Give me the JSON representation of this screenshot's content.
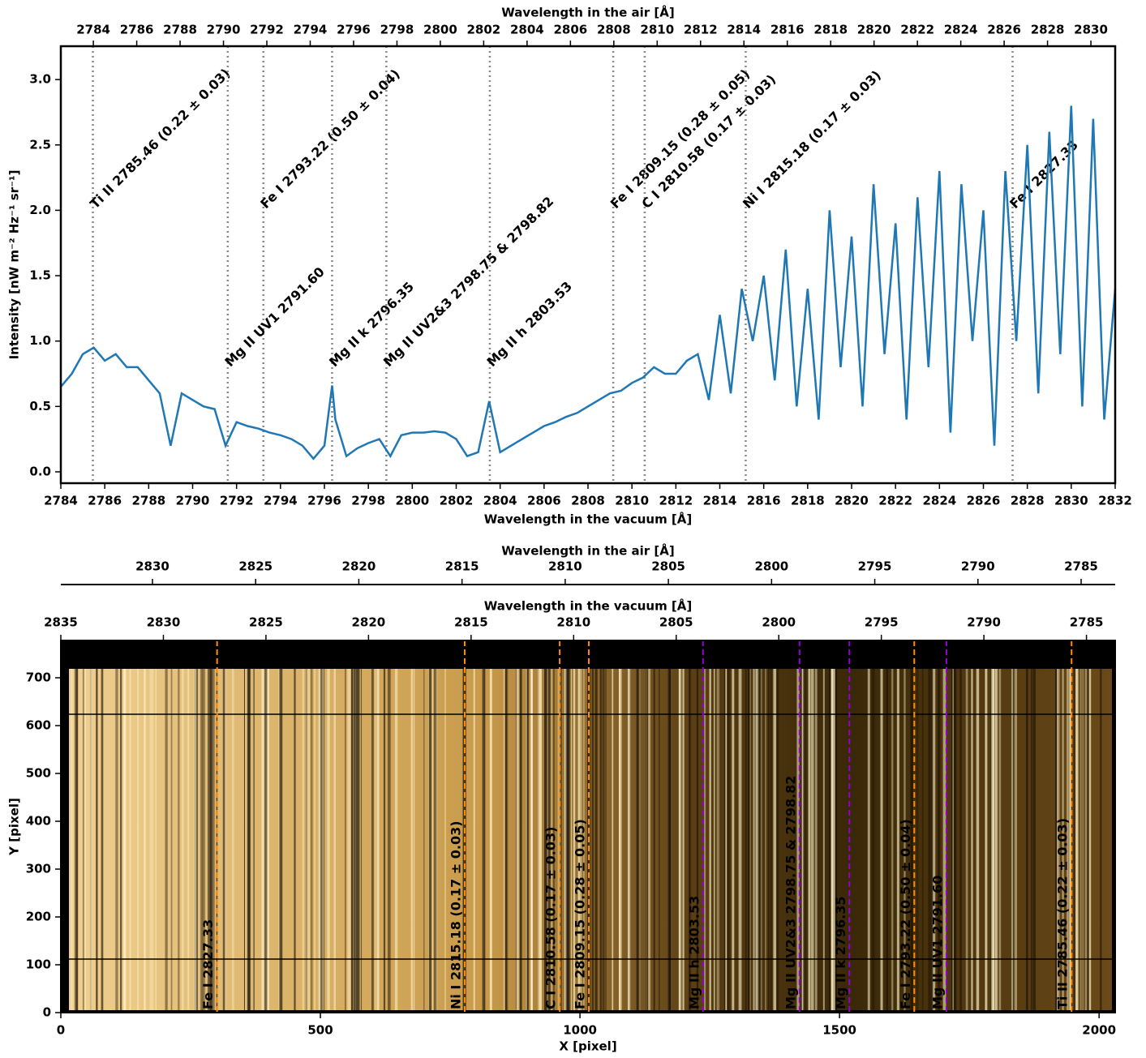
{
  "chart_data": [
    {
      "type": "line",
      "xlabel": "Wavelength in the vacuum [Å]",
      "x2label": "Wavelength in the air [Å]",
      "ylabel": "Intensity [nW m⁻² Hz⁻¹ sr⁻¹]",
      "color": "#1f77b4",
      "xlim": [
        2784,
        2832
      ],
      "xticks": [
        2784,
        2786,
        2788,
        2790,
        2792,
        2794,
        2796,
        2798,
        2800,
        2802,
        2804,
        2806,
        2808,
        2810,
        2812,
        2814,
        2816,
        2818,
        2820,
        2822,
        2824,
        2826,
        2828,
        2830,
        2832
      ],
      "x2lim": [
        2782.5,
        2831.12
      ],
      "x2ticks": [
        2784,
        2786,
        2788,
        2790,
        2792,
        2794,
        2796,
        2798,
        2800,
        2802,
        2804,
        2806,
        2808,
        2810,
        2812,
        2814,
        2816,
        2818,
        2820,
        2822,
        2824,
        2826,
        2828,
        2830
      ],
      "ylim": [
        -0.087,
        3.255
      ],
      "yticks": [
        {
          "value": 0,
          "label": "0.0"
        },
        {
          "value": 0.5,
          "label": "0.5"
        },
        {
          "value": 1,
          "label": "1.0"
        },
        {
          "value": 1.5,
          "label": "1.5"
        },
        {
          "value": 2,
          "label": "2.0"
        },
        {
          "value": 2.5,
          "label": "2.5"
        },
        {
          "value": 3,
          "label": "3.0"
        }
      ],
      "x": [
        2784,
        2784.5,
        2785,
        2785.5,
        2786,
        2786.5,
        2787,
        2787.5,
        2788,
        2788.5,
        2789,
        2789.5,
        2790,
        2790.5,
        2791,
        2791.5,
        2792,
        2792.5,
        2793,
        2793.5,
        2794,
        2794.5,
        2795,
        2795.5,
        2796,
        2796.35,
        2796.5,
        2797,
        2797.5,
        2798,
        2798.5,
        2799,
        2799.5,
        2800,
        2800.5,
        2801,
        2801.5,
        2802,
        2802.5,
        2803,
        2803.5,
        2804,
        2804.5,
        2805,
        2805.5,
        2806,
        2806.5,
        2807,
        2807.5,
        2808,
        2808.5,
        2809,
        2809.5,
        2810,
        2810.5,
        2811,
        2811.5,
        2812,
        2812.5,
        2813,
        2813.5,
        2814,
        2814.5,
        2815,
        2815.5,
        2816,
        2816.5,
        2817,
        2817.5,
        2818,
        2818.5,
        2819,
        2819.5,
        2820,
        2820.5,
        2821,
        2821.5,
        2822,
        2822.5,
        2823,
        2823.5,
        2824,
        2824.5,
        2825,
        2825.5,
        2826,
        2826.5,
        2827,
        2827.5,
        2828,
        2828.5,
        2829,
        2829.5,
        2830,
        2830.5,
        2831,
        2831.5,
        2832
      ],
      "values": [
        0.65,
        0.75,
        0.9,
        0.95,
        0.85,
        0.9,
        0.8,
        0.8,
        0.7,
        0.6,
        0.2,
        0.6,
        0.55,
        0.5,
        0.48,
        0.2,
        0.38,
        0.35,
        0.33,
        0.3,
        0.28,
        0.25,
        0.2,
        0.1,
        0.2,
        0.66,
        0.4,
        0.12,
        0.18,
        0.22,
        0.25,
        0.12,
        0.28,
        0.3,
        0.3,
        0.31,
        0.3,
        0.25,
        0.12,
        0.15,
        0.54,
        0.15,
        0.2,
        0.25,
        0.3,
        0.35,
        0.38,
        0.42,
        0.45,
        0.5,
        0.55,
        0.6,
        0.62,
        0.68,
        0.72,
        0.8,
        0.75,
        0.75,
        0.85,
        0.9,
        0.55,
        1.2,
        0.6,
        1.4,
        1.0,
        1.5,
        0.7,
        1.7,
        0.5,
        1.4,
        0.4,
        2.0,
        0.8,
        1.8,
        0.5,
        2.2,
        0.9,
        1.9,
        0.4,
        2.1,
        0.8,
        2.3,
        0.3,
        2.2,
        1.0,
        2.0,
        0.2,
        2.3,
        1.0,
        2.5,
        0.6,
        2.6,
        0.9,
        2.8,
        0.5,
        2.7,
        0.4,
        1.4
      ],
      "upper_labels": [
        {
          "x": 2785.46,
          "label": "Ti II 2785.46 (0.22 ± 0.03)",
          "color": "#ff8c00"
        },
        {
          "x": 2793.22,
          "label": "Fe I 2793.22 (0.50 ± 0.04)",
          "color": "#ff8c00"
        },
        {
          "x": 2809.15,
          "label": "Fe I 2809.15 (0.28 ± 0.05)",
          "color": "#ff8c00"
        },
        {
          "x": 2810.58,
          "label": "C I 2810.58 (0.17 ± 0.03)",
          "color": "#ff8c00"
        },
        {
          "x": 2815.18,
          "label": "Ni I 2815.18 (0.17 ± 0.03)",
          "color": "#ff8c00"
        },
        {
          "x": 2827.33,
          "label": "Fe I 2827.33",
          "color": "#ff8c00"
        }
      ],
      "lower_labels": [
        {
          "x": 2791.6,
          "label": "Mg II UV1 2791.60",
          "color": "#9400d3"
        },
        {
          "x": 2796.35,
          "label": "Mg II k 2796.35",
          "color": "#9400d3"
        },
        {
          "x": 2798.82,
          "label": "Mg II UV2&3 2798.75 & 2798.82",
          "color": "#9400d3"
        },
        {
          "x": 2803.53,
          "label": "Mg II h 2803.53",
          "color": "#9400d3"
        }
      ]
    },
    {
      "type": "image",
      "xlabel": "X [pixel]",
      "ylabel": "Y [pixel]",
      "x2label": "Wavelength in the vacuum [Å]",
      "x3label": "Wavelength in the air [Å]",
      "xlim": [
        0,
        2031
      ],
      "xticks": [
        0,
        500,
        1000,
        1500,
        2000
      ],
      "ylim": [
        0,
        778
      ],
      "yticks": [
        0,
        100,
        200,
        300,
        400,
        500,
        600,
        700
      ],
      "x2lim": [
        2835,
        2783.6
      ],
      "x2ticks": [
        2835,
        2830,
        2825,
        2820,
        2815,
        2810,
        2805,
        2800,
        2795,
        2790,
        2785
      ],
      "x3lim": [
        2834.44,
        2783.35
      ],
      "x3ticks": [
        2830,
        2825,
        2820,
        2815,
        2810,
        2805,
        2800,
        2795,
        2790,
        2785
      ],
      "lines": [
        {
          "x": 301,
          "label": "Fe I 2827.33",
          "color": "#ff8c00"
        },
        {
          "x": 778,
          "label": "Ni I 2815.18 (0.17 ± 0.03)",
          "color": "#ff8c00"
        },
        {
          "x": 961,
          "label": "C I 2810.58 (0.17 ± 0.03)",
          "color": "#ff8c00"
        },
        {
          "x": 1017,
          "label": "Fe I 2809.15 (0.28 ± 0.05)",
          "color": "#ff8c00"
        },
        {
          "x": 1237,
          "label": "Mg II h 2803.53",
          "color": "#9400d3"
        },
        {
          "x": 1423,
          "label": "Mg II UV2&3 2798.75 & 2798.82",
          "color": "#9400d3"
        },
        {
          "x": 1519,
          "label": "Mg II k 2796.35",
          "color": "#9400d3"
        },
        {
          "x": 1644,
          "label": "Fe I 2793.22 (0.50 ± 0.04)",
          "color": "#ff8c00"
        },
        {
          "x": 1706,
          "label": "Mg II UV1 2791.60",
          "color": "#9400d3"
        },
        {
          "x": 1947,
          "label": "Ti II 2785.46 (0.22 ± 0.03)",
          "color": "#ff8c00"
        }
      ]
    }
  ]
}
